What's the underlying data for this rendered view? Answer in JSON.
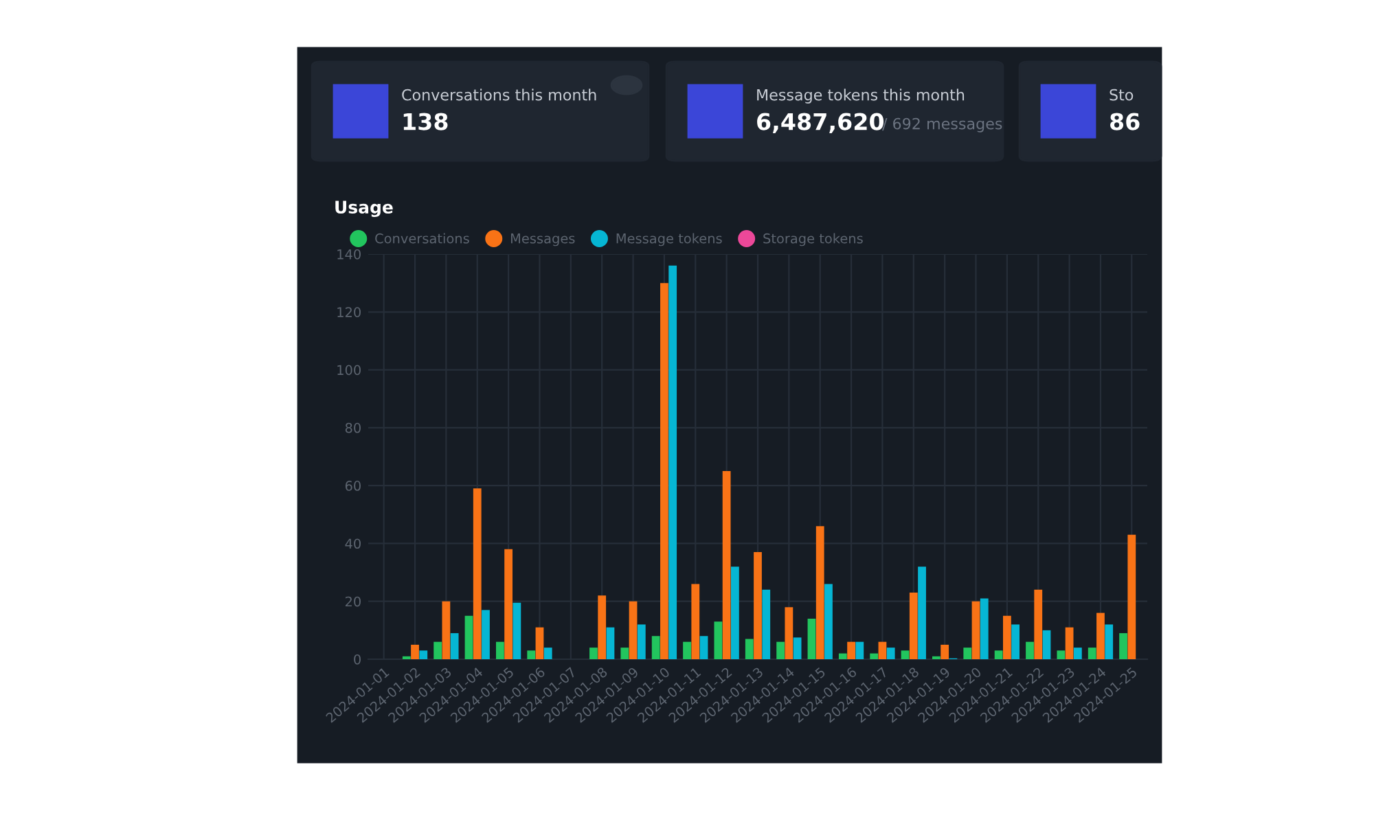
{
  "chart_data": [
    {
      "type": "other",
      "annotations": [
        "Conversations this month",
        "138",
        "Message tokens this month",
        "6,487,620",
        "/ 692 messages",
        "Sto",
        "86"
      ]
    },
    {
      "type": "bar",
      "title": "Usage",
      "categories": [
        "2024-01-01",
        "2024-01-02",
        "2024-01-03",
        "2024-01-04",
        "2024-01-05",
        "2024-01-06",
        "2024-01-07",
        "2024-01-08",
        "2024-01-09",
        "2024-01-10",
        "2024-01-11",
        "2024-01-12",
        "2024-01-13",
        "2024-01-14",
        "2024-01-15",
        "2024-01-16",
        "2024-01-17",
        "2024-01-18",
        "2024-01-19",
        "2024-01-20",
        "2024-01-21",
        "2024-01-22",
        "2024-01-23",
        "2024-01-24",
        "2024-01-25"
      ],
      "series": [
        {
          "name": "Conversations",
          "color": "#22c55e",
          "values": [
            0,
            1,
            6,
            15,
            6,
            3,
            0,
            4,
            4,
            8,
            6,
            13,
            7,
            6,
            14,
            2,
            2,
            3,
            1,
            4,
            3,
            6,
            3,
            4,
            9
          ]
        },
        {
          "name": "Messages",
          "color": "#f97316",
          "values": [
            0,
            5,
            20,
            59,
            38,
            11,
            0,
            22,
            20,
            130,
            26,
            65,
            37,
            18,
            46,
            6,
            6,
            23,
            5,
            20,
            15,
            24,
            11,
            16,
            43
          ]
        },
        {
          "name": "Message tokens",
          "color": "#06b6d4",
          "values": [
            0,
            3,
            9,
            17,
            19.5,
            4,
            0,
            11,
            12,
            136,
            8,
            32,
            24,
            7.5,
            26,
            6,
            4,
            32,
            0.3,
            21,
            12,
            10,
            4,
            12,
            null
          ]
        },
        {
          "name": "Storage tokens",
          "color": "#ec4899",
          "values": [
            null,
            null,
            null,
            null,
            null,
            null,
            null,
            null,
            null,
            null,
            null,
            null,
            null,
            null,
            null,
            null,
            null,
            null,
            null,
            null,
            null,
            null,
            null,
            null,
            null
          ]
        }
      ],
      "ylim": [
        0,
        140
      ],
      "yticks": [
        0,
        20,
        40,
        60,
        80,
        100,
        120,
        140
      ],
      "grid": true,
      "legend": "top left"
    }
  ]
}
